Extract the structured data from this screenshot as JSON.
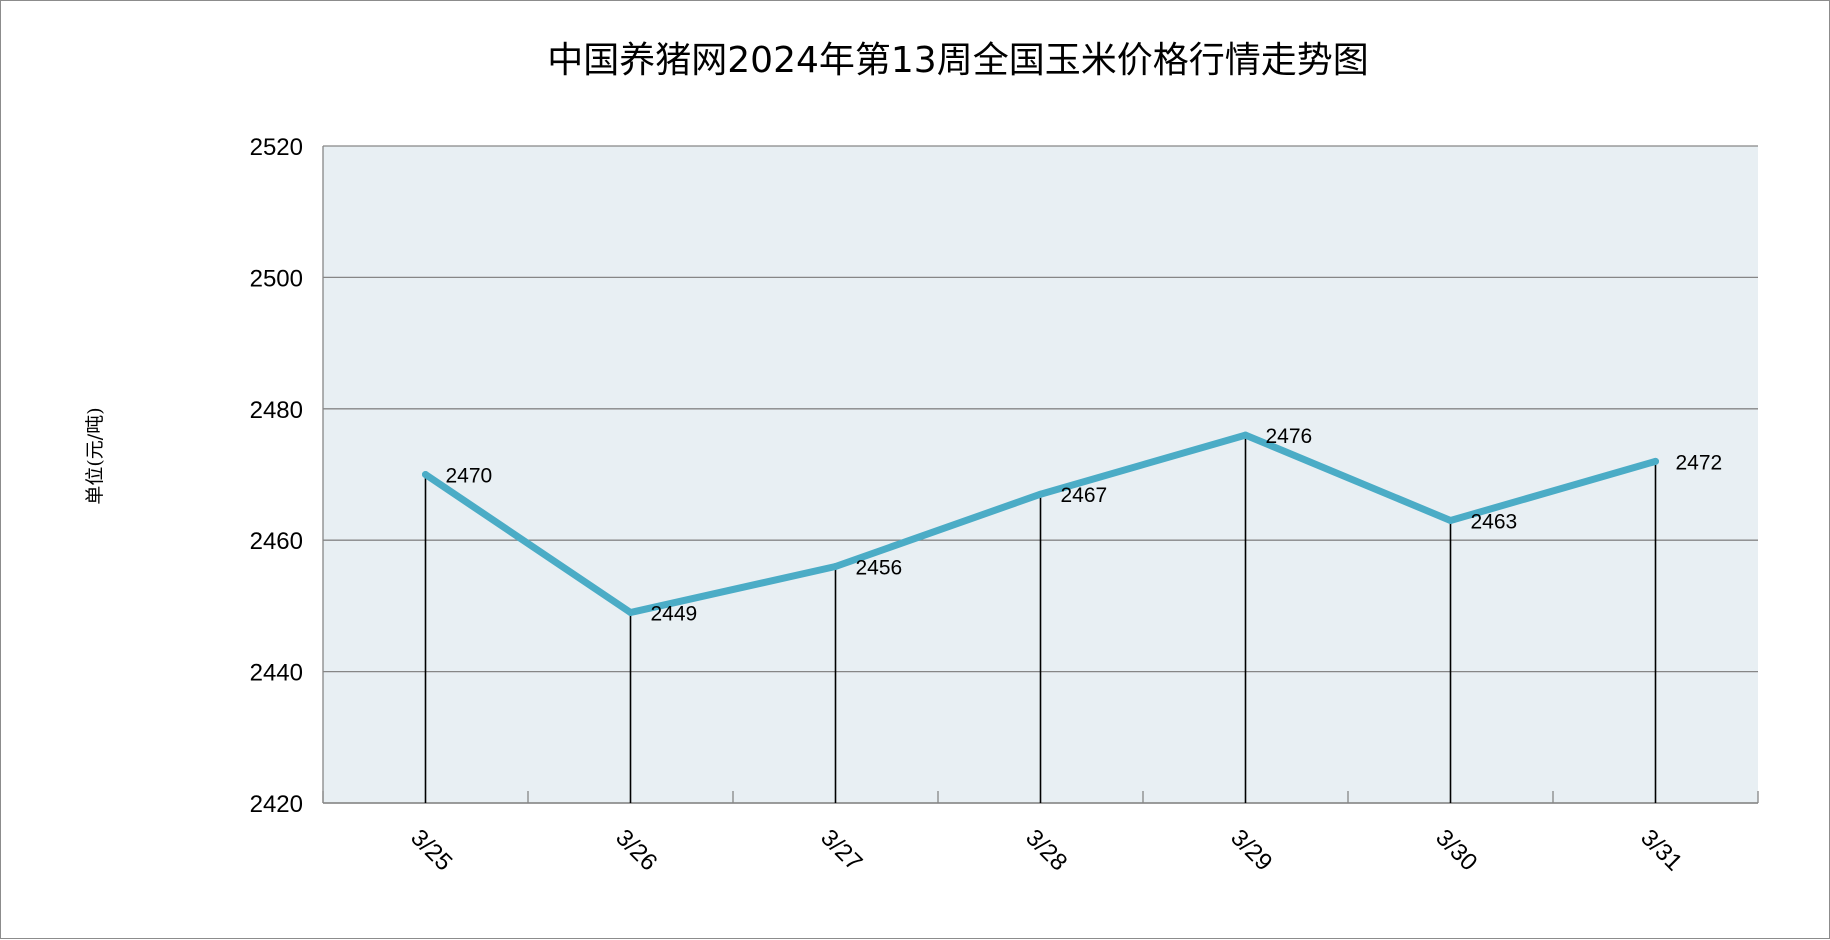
{
  "chart_data": {
    "type": "line",
    "title": "中国养猪网2024年第13周全国玉米价格行情走势图",
    "xlabel": "",
    "ylabel": "单位(元/吨)",
    "categories": [
      "3/25",
      "3/26",
      "3/27",
      "3/28",
      "3/29",
      "3/30",
      "3/31"
    ],
    "series": [
      {
        "values": [
          2470,
          2449,
          2456,
          2467,
          2476,
          2463,
          2472
        ]
      }
    ],
    "ylim": [
      2420,
      2520
    ],
    "yticks": [
      2420,
      2440,
      2460,
      2480,
      2500,
      2520
    ],
    "grid": true,
    "legend": "none",
    "data_labels": true,
    "drop_lines": true,
    "colors": {
      "line": "#4bacc6",
      "plot_background": "#e8eff3",
      "gridline": "#868686",
      "drop_line": "#000000"
    }
  }
}
